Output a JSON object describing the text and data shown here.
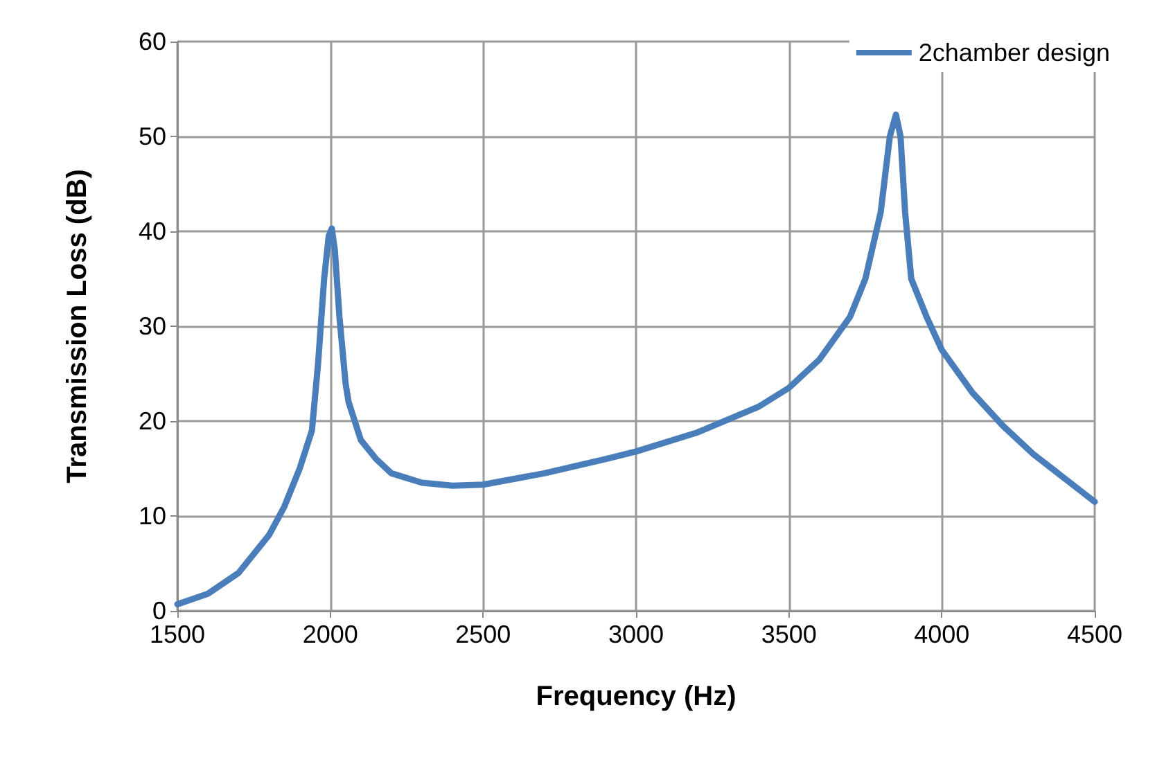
{
  "chart_data": {
    "type": "line",
    "xlabel": "Frequency (Hz)",
    "ylabel": "Transmission Loss (dB)",
    "x": [
      1500,
      1600,
      1700,
      1800,
      1850,
      1900,
      1940,
      1960,
      1980,
      1995,
      2005,
      2015,
      2030,
      2050,
      2060,
      2100,
      2150,
      2200,
      2300,
      2400,
      2500,
      2700,
      2900,
      3000,
      3200,
      3400,
      3500,
      3600,
      3700,
      3750,
      3800,
      3830,
      3850,
      3865,
      3880,
      3900,
      3950,
      4000,
      4100,
      4200,
      4300,
      4400,
      4500
    ],
    "series": [
      {
        "name": "2chamber design",
        "color": "#4a7ebb",
        "values": [
          0.7,
          1.8,
          4,
          8,
          11,
          15,
          19,
          26,
          35,
          39.5,
          40.3,
          38,
          31,
          24,
          22,
          18,
          16,
          14.5,
          13.5,
          13.2,
          13.3,
          14.5,
          16,
          16.8,
          18.8,
          21.5,
          23.5,
          26.5,
          31,
          35,
          42,
          50,
          52.3,
          50,
          42,
          35,
          31,
          27.5,
          23,
          19.5,
          16.5,
          14,
          11.5
        ]
      }
    ],
    "xlim": [
      1500,
      4500
    ],
    "xticks": [
      1500,
      2000,
      2500,
      3000,
      3500,
      4000,
      4500
    ],
    "ylim": [
      0,
      60
    ],
    "yticks": [
      0,
      10,
      20,
      30,
      40,
      50,
      60
    ],
    "grid": true,
    "legend": "top right",
    "marker": "none",
    "line_style": "solid"
  }
}
